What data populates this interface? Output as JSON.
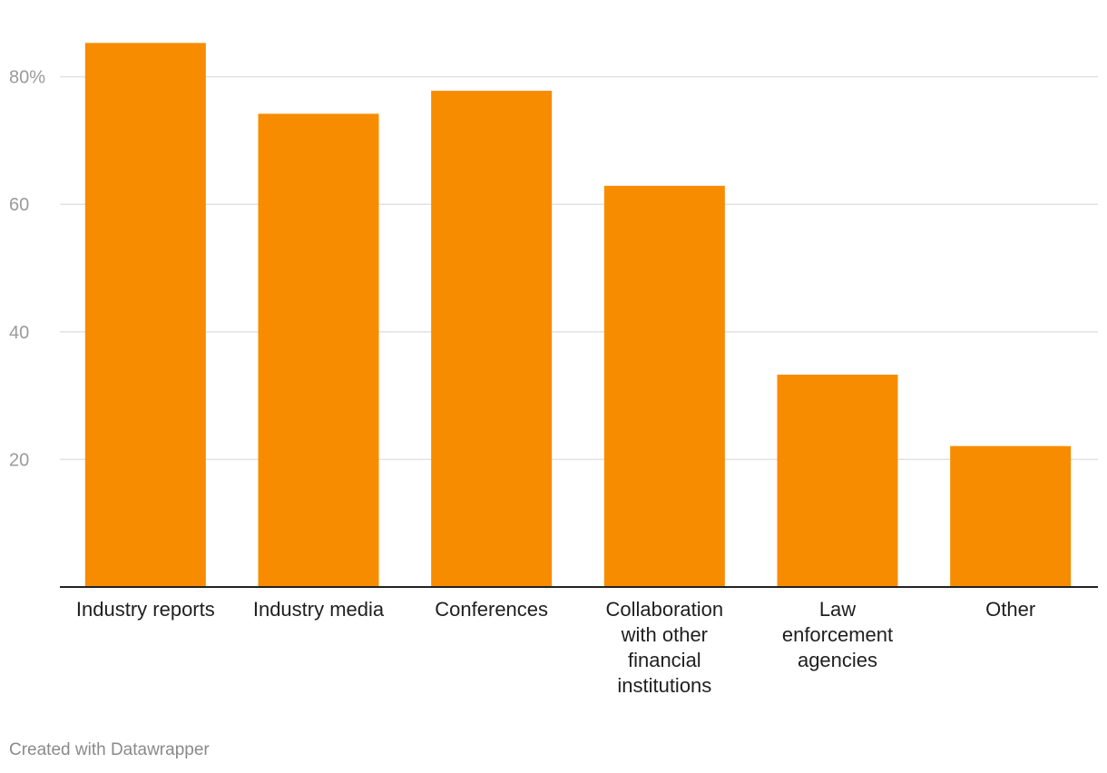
{
  "chart_data": {
    "type": "bar",
    "categories": [
      "Industry reports",
      "Industry media",
      "Conferences",
      "Collaboration with other financial institutions",
      "Law enforcement agencies",
      "Other"
    ],
    "category_lines": [
      [
        "Industry reports"
      ],
      [
        "Industry media"
      ],
      [
        "Conferences"
      ],
      [
        "Collaboration",
        "with other",
        "financial",
        "institutions"
      ],
      [
        "Law",
        "enforcement",
        "agencies"
      ],
      [
        "Other"
      ]
    ],
    "values": [
      85.3,
      74.2,
      77.8,
      62.9,
      33.3,
      22.1
    ],
    "ylim": [
      0,
      90
    ],
    "yticks": [
      20,
      40,
      60,
      80
    ],
    "ytick_labels": [
      "20",
      "40",
      "60",
      "80%"
    ],
    "bar_color": "#f78c00",
    "grid": true,
    "title": "",
    "xlabel": "",
    "ylabel": ""
  },
  "footer": {
    "credit": "Created with Datawrapper"
  }
}
